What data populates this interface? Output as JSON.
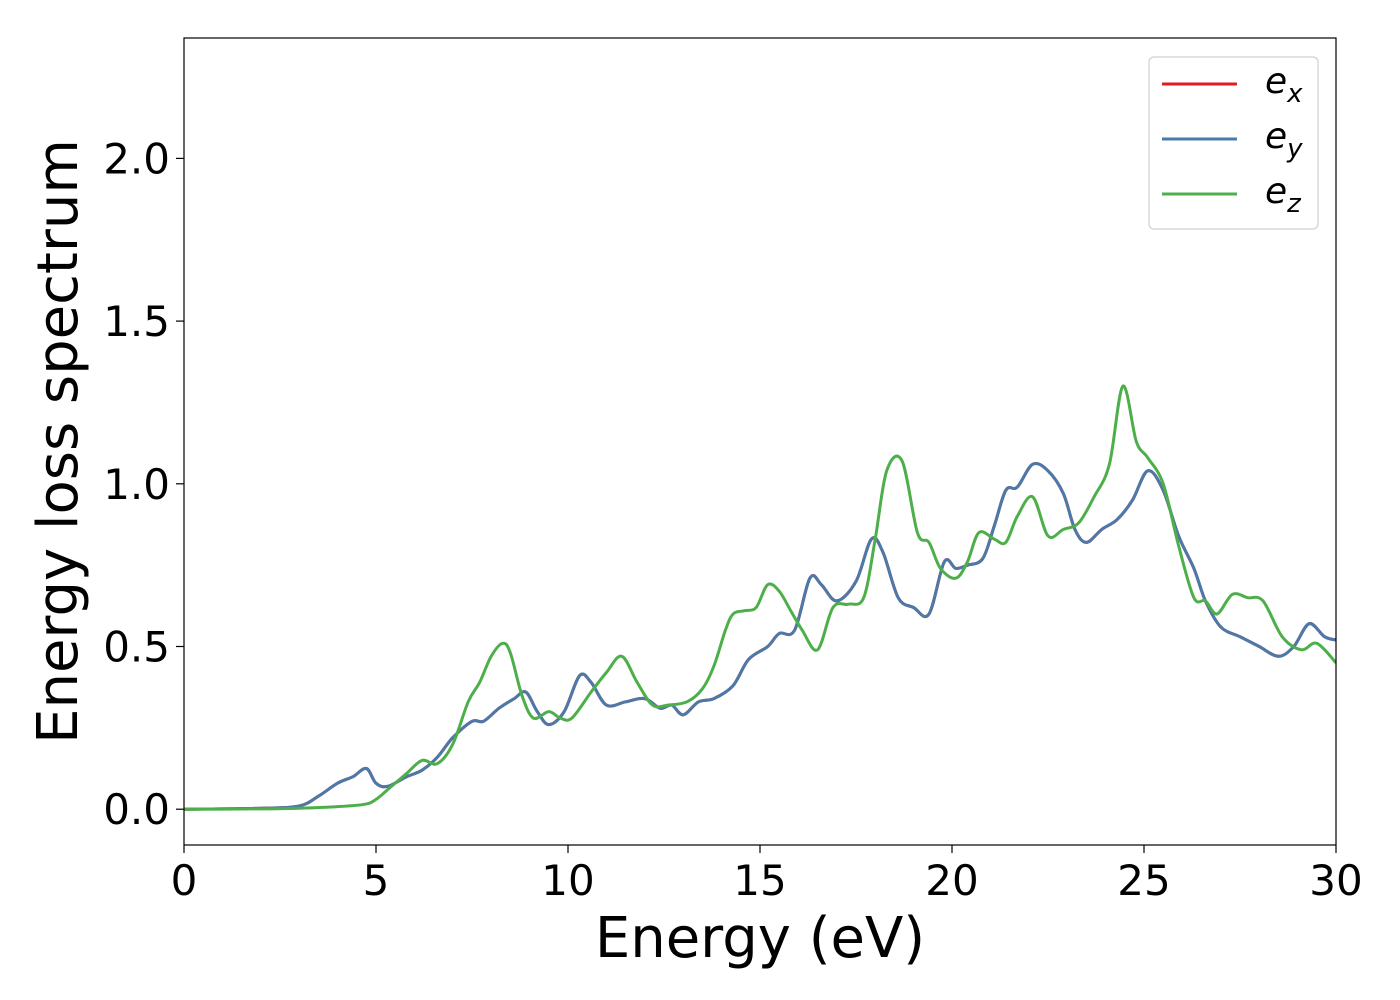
{
  "chart_data": {
    "type": "line",
    "title": "",
    "xlabel": "Energy (eV)",
    "ylabel": "Energy loss spectrum",
    "xlim": [
      0,
      30
    ],
    "ylim": [
      -0.11,
      2.37
    ],
    "xticks": [
      0,
      5,
      10,
      15,
      20,
      25,
      30
    ],
    "xtick_labels": [
      "0",
      "5",
      "10",
      "15",
      "20",
      "25",
      "30"
    ],
    "yticks": [
      0.0,
      0.5,
      1.0,
      1.5,
      2.0
    ],
    "ytick_labels": [
      "0.0",
      "0.5",
      "1.0",
      "1.5",
      "2.0"
    ],
    "grid": false,
    "legend_position": "top-right",
    "series": [
      {
        "name": "e",
        "subscript": "x",
        "color": "#e41a1c",
        "x": [
          0,
          2,
          3,
          3.5,
          4,
          4.4,
          4.75,
          5,
          5.3,
          5.8,
          6.2,
          6.6,
          7,
          7.5,
          7.8,
          8.2,
          8.6,
          8.9,
          9.2,
          9.5,
          9.9,
          10.3,
          10.6,
          11,
          11.5,
          12,
          12.4,
          12.7,
          13,
          13.4,
          13.8,
          14.3,
          14.7,
          15.2,
          15.5,
          15.9,
          16.3,
          16.6,
          17,
          17.5,
          17.9,
          18.2,
          18.6,
          19,
          19.4,
          19.8,
          20.1,
          20.4,
          20.8,
          21.1,
          21.4,
          21.7,
          22.1,
          22.5,
          22.9,
          23.2,
          23.5,
          23.9,
          24.3,
          24.7,
          25.1,
          25.5,
          25.9,
          26.3,
          26.6,
          27,
          27.5,
          28,
          28.5,
          28.9,
          29.3,
          29.7,
          30
        ],
        "y": [
          0.0,
          0.003,
          0.01,
          0.04,
          0.08,
          0.1,
          0.125,
          0.08,
          0.07,
          0.1,
          0.12,
          0.16,
          0.22,
          0.27,
          0.27,
          0.31,
          0.34,
          0.36,
          0.3,
          0.26,
          0.3,
          0.41,
          0.39,
          0.32,
          0.33,
          0.34,
          0.31,
          0.32,
          0.29,
          0.33,
          0.34,
          0.38,
          0.46,
          0.5,
          0.54,
          0.55,
          0.71,
          0.69,
          0.64,
          0.7,
          0.83,
          0.79,
          0.65,
          0.62,
          0.6,
          0.76,
          0.74,
          0.75,
          0.77,
          0.87,
          0.98,
          0.99,
          1.06,
          1.04,
          0.97,
          0.86,
          0.82,
          0.86,
          0.89,
          0.95,
          1.04,
          0.98,
          0.84,
          0.74,
          0.64,
          0.56,
          0.53,
          0.5,
          0.47,
          0.5,
          0.57,
          0.53,
          0.52
        ]
      },
      {
        "name": "e",
        "subscript": "y",
        "color": "#4a79aa",
        "x": [
          0,
          2,
          3,
          3.5,
          4,
          4.4,
          4.75,
          5,
          5.3,
          5.8,
          6.2,
          6.6,
          7,
          7.5,
          7.8,
          8.2,
          8.6,
          8.9,
          9.2,
          9.5,
          9.9,
          10.3,
          10.6,
          11,
          11.5,
          12,
          12.4,
          12.7,
          13,
          13.4,
          13.8,
          14.3,
          14.7,
          15.2,
          15.5,
          15.9,
          16.3,
          16.6,
          17,
          17.5,
          17.9,
          18.2,
          18.6,
          19,
          19.4,
          19.8,
          20.1,
          20.4,
          20.8,
          21.1,
          21.4,
          21.7,
          22.1,
          22.5,
          22.9,
          23.2,
          23.5,
          23.9,
          24.3,
          24.7,
          25.1,
          25.5,
          25.9,
          26.3,
          26.6,
          27,
          27.5,
          28,
          28.5,
          28.9,
          29.3,
          29.7,
          30
        ],
        "y": [
          0.0,
          0.003,
          0.01,
          0.04,
          0.08,
          0.1,
          0.125,
          0.08,
          0.07,
          0.1,
          0.12,
          0.16,
          0.22,
          0.27,
          0.27,
          0.31,
          0.34,
          0.36,
          0.3,
          0.26,
          0.3,
          0.41,
          0.39,
          0.32,
          0.33,
          0.34,
          0.31,
          0.32,
          0.29,
          0.33,
          0.34,
          0.38,
          0.46,
          0.5,
          0.54,
          0.55,
          0.71,
          0.69,
          0.64,
          0.7,
          0.83,
          0.79,
          0.65,
          0.62,
          0.6,
          0.76,
          0.74,
          0.75,
          0.77,
          0.87,
          0.98,
          0.99,
          1.06,
          1.04,
          0.97,
          0.86,
          0.82,
          0.86,
          0.89,
          0.95,
          1.04,
          0.98,
          0.84,
          0.74,
          0.64,
          0.56,
          0.53,
          0.5,
          0.47,
          0.5,
          0.57,
          0.53,
          0.52
        ]
      },
      {
        "name": "e",
        "subscript": "z",
        "color": "#4daf4a",
        "x": [
          0,
          2,
          3,
          4,
          4.7,
          5,
          5.4,
          5.8,
          6.2,
          6.6,
          7,
          7.4,
          7.7,
          8,
          8.3,
          8.5,
          8.8,
          9.1,
          9.5,
          9.8,
          10.1,
          10.6,
          11,
          11.4,
          11.8,
          12.2,
          12.6,
          13.1,
          13.5,
          13.8,
          14.1,
          14.3,
          14.6,
          14.9,
          15.2,
          15.5,
          15.8,
          16.1,
          16.5,
          16.9,
          17.3,
          17.7,
          18,
          18.3,
          18.7,
          19.1,
          19.4,
          19.7,
          20.1,
          20.4,
          20.7,
          21.1,
          21.4,
          21.7,
          22.1,
          22.5,
          22.9,
          23.3,
          23.7,
          24.1,
          24.45,
          24.8,
          25.1,
          25.5,
          25.9,
          26.3,
          26.6,
          26.9,
          27.3,
          27.7,
          28.1,
          28.6,
          29.1,
          29.5,
          30
        ],
        "y": [
          0.0,
          0.001,
          0.003,
          0.008,
          0.015,
          0.03,
          0.07,
          0.11,
          0.15,
          0.14,
          0.2,
          0.33,
          0.39,
          0.47,
          0.51,
          0.48,
          0.35,
          0.28,
          0.3,
          0.28,
          0.28,
          0.36,
          0.42,
          0.47,
          0.39,
          0.32,
          0.32,
          0.33,
          0.37,
          0.44,
          0.55,
          0.6,
          0.61,
          0.62,
          0.69,
          0.67,
          0.61,
          0.55,
          0.49,
          0.62,
          0.63,
          0.65,
          0.83,
          1.04,
          1.07,
          0.85,
          0.82,
          0.74,
          0.71,
          0.76,
          0.85,
          0.83,
          0.82,
          0.9,
          0.96,
          0.84,
          0.86,
          0.88,
          0.96,
          1.06,
          1.3,
          1.13,
          1.08,
          1.0,
          0.81,
          0.65,
          0.64,
          0.6,
          0.66,
          0.65,
          0.64,
          0.53,
          0.49,
          0.51,
          0.45
        ]
      }
    ]
  }
}
